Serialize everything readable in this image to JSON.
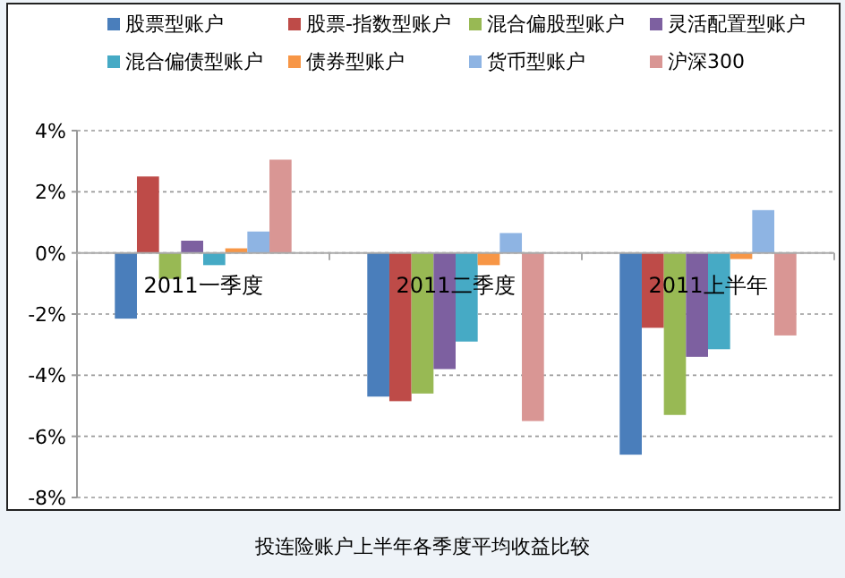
{
  "chart_data": {
    "type": "bar",
    "categories": [
      "2011一季度",
      "2011二季度",
      "2011上半年"
    ],
    "series": [
      {
        "name": "股票型账户",
        "color": "#4a7ebb",
        "values": [
          -2.15,
          -4.7,
          -6.6
        ]
      },
      {
        "name": "股票-指数型账户",
        "color": "#be4b48",
        "values": [
          2.5,
          -4.85,
          -2.45
        ]
      },
      {
        "name": "混合偏股型账户",
        "color": "#98b954",
        "values": [
          -0.85,
          -4.6,
          -5.3
        ]
      },
      {
        "name": "灵活配置型账户",
        "color": "#7d60a0",
        "values": [
          0.4,
          -3.8,
          -3.4
        ]
      },
      {
        "name": "混合偏债型账户",
        "color": "#46aac5",
        "values": [
          -0.4,
          -2.9,
          -3.15
        ]
      },
      {
        "name": "债券型账户",
        "color": "#f79646",
        "values": [
          0.15,
          -0.4,
          -0.2
        ]
      },
      {
        "name": "货币型账户",
        "color": "#8eb4e3",
        "values": [
          0.7,
          0.65,
          1.4
        ]
      },
      {
        "name": "沪深300",
        "color": "#d99694",
        "values": [
          3.05,
          -5.5,
          -2.7
        ]
      }
    ],
    "ylim": [
      -8,
      4
    ],
    "yticks": [
      {
        "value": -8,
        "label": "-8%"
      },
      {
        "value": -6,
        "label": "-6%"
      },
      {
        "value": -4,
        "label": "-4%"
      },
      {
        "value": -2,
        "label": "-2%"
      },
      {
        "value": 0,
        "label": "0%"
      },
      {
        "value": 2,
        "label": "2%"
      },
      {
        "value": 4,
        "label": "4%"
      }
    ],
    "grid": "y",
    "legend": "top",
    "annotations": [
      "投连险账户上半年各季度平均收益比较"
    ]
  }
}
